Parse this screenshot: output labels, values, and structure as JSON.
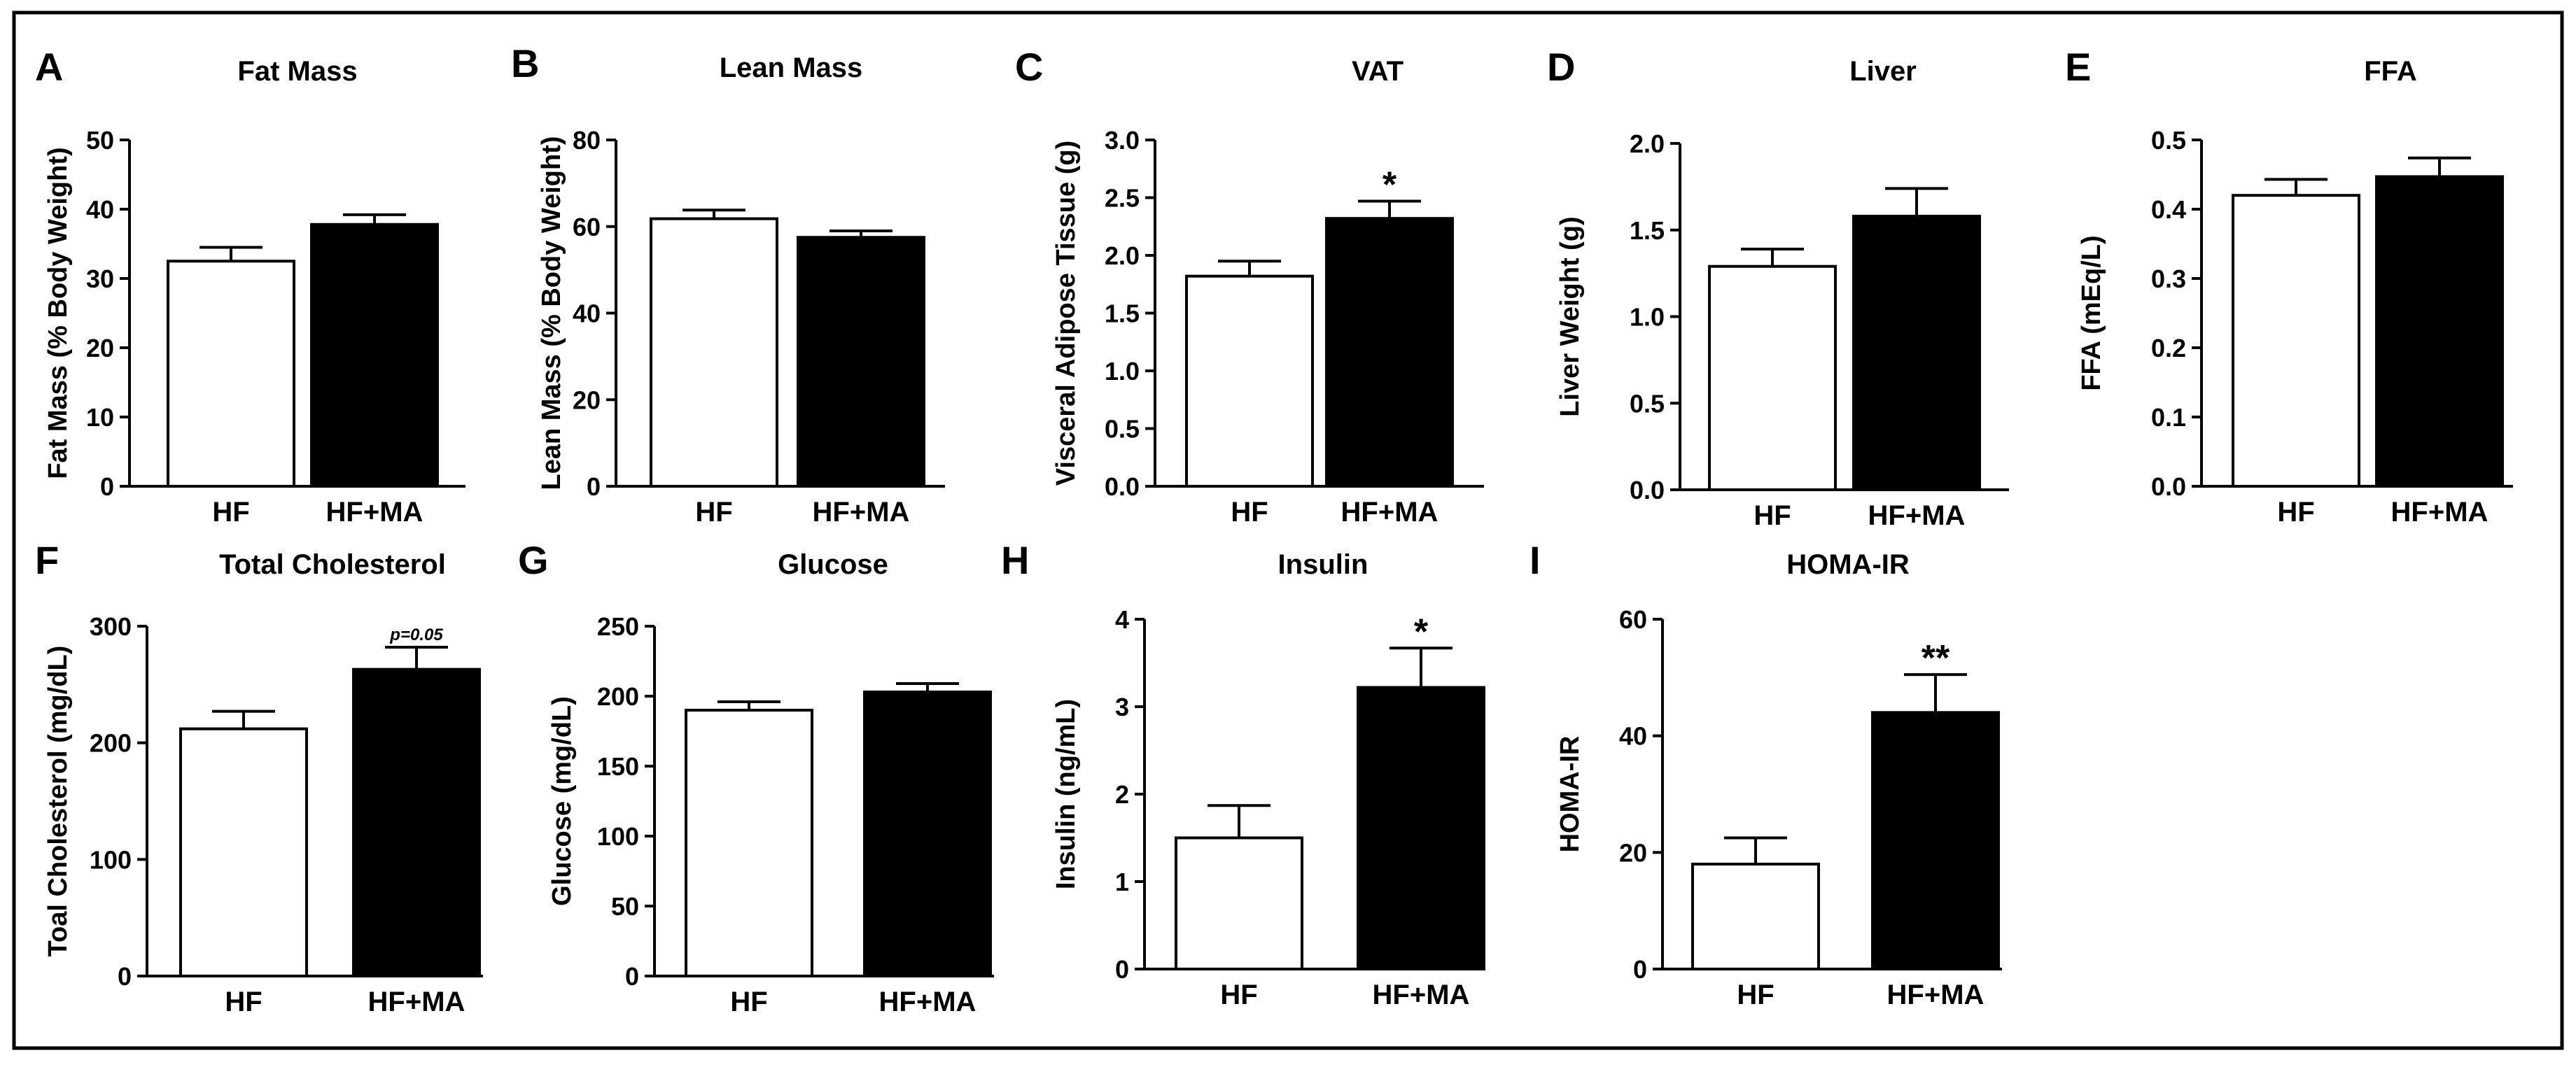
{
  "figure": {
    "border_color": "#000000"
  },
  "chart_data": [
    {
      "panel": "A",
      "type": "bar",
      "title": "Fat Mass",
      "ylabel": "Fat Mass (% Body  Weight)",
      "categories": [
        "HF",
        "HF+MA"
      ],
      "values": [
        32.5,
        37.8
      ],
      "errors": [
        2.0,
        1.4
      ],
      "colors": [
        "#ffffff",
        "#000000"
      ],
      "ylim": [
        0,
        50
      ],
      "yticks": [
        0,
        10,
        20,
        30,
        40,
        50
      ],
      "ytick_labels": [
        "0",
        "10",
        "20",
        "30",
        "40",
        "50"
      ],
      "annotations": [
        "",
        ""
      ]
    },
    {
      "panel": "B",
      "type": "bar",
      "title": "Lean Mass",
      "ylabel": "Lean Mass (% Body Weight)",
      "categories": [
        "HF",
        "HF+MA"
      ],
      "values": [
        61.8,
        57.5
      ],
      "errors": [
        2.0,
        1.5
      ],
      "colors": [
        "#ffffff",
        "#000000"
      ],
      "ylim": [
        0,
        80
      ],
      "yticks": [
        0,
        20,
        40,
        60,
        80
      ],
      "ytick_labels": [
        "0",
        "20",
        "40",
        "60",
        "80"
      ],
      "annotations": [
        "",
        ""
      ]
    },
    {
      "panel": "C",
      "type": "bar",
      "title": "VAT",
      "ylabel": "Visceral Adipose Tissue (g)",
      "categories": [
        "HF",
        "HF+MA"
      ],
      "values": [
        1.82,
        2.32
      ],
      "errors": [
        0.13,
        0.15
      ],
      "colors": [
        "#ffffff",
        "#000000"
      ],
      "ylim": [
        0,
        3.0
      ],
      "yticks": [
        0,
        0.5,
        1.0,
        1.5,
        2.0,
        2.5,
        3.0
      ],
      "ytick_labels": [
        "0.0",
        "0.5",
        "1.0",
        "1.5",
        "2.0",
        "2.5",
        "3.0"
      ],
      "annotations": [
        "",
        "*"
      ]
    },
    {
      "panel": "D",
      "type": "bar",
      "title": "Liver",
      "ylabel": "Liver Weight (g)",
      "categories": [
        "HF",
        "HF+MA"
      ],
      "values": [
        1.29,
        1.58
      ],
      "errors": [
        0.1,
        0.16
      ],
      "colors": [
        "#ffffff",
        "#000000"
      ],
      "ylim": [
        0,
        2.0
      ],
      "yticks": [
        0,
        0.5,
        1.0,
        1.5,
        2.0
      ],
      "ytick_labels": [
        "0.0",
        "0.5",
        "1.0",
        "1.5",
        "2.0"
      ],
      "annotations": [
        "",
        ""
      ]
    },
    {
      "panel": "E",
      "type": "bar",
      "title": "FFA",
      "ylabel": "FFA (mEq/L)",
      "categories": [
        "HF",
        "HF+MA"
      ],
      "values": [
        0.42,
        0.447
      ],
      "errors": [
        0.023,
        0.027
      ],
      "colors": [
        "#ffffff",
        "#000000"
      ],
      "ylim": [
        0,
        0.5
      ],
      "yticks": [
        0,
        0.1,
        0.2,
        0.3,
        0.4,
        0.5
      ],
      "ytick_labels": [
        "0.0",
        "0.1",
        "0.2",
        "0.3",
        "0.4",
        "0.5"
      ],
      "annotations": [
        "",
        ""
      ]
    },
    {
      "panel": "F",
      "type": "bar",
      "title": "Total Cholesterol",
      "ylabel": "Toal Cholesterol (mg/dL)",
      "categories": [
        "HF",
        "HF+MA"
      ],
      "values": [
        212,
        263
      ],
      "errors": [
        15,
        19
      ],
      "colors": [
        "#ffffff",
        "#000000"
      ],
      "ylim": [
        0,
        300
      ],
      "yticks": [
        0,
        100,
        200,
        300
      ],
      "ytick_labels": [
        "0",
        "100",
        "200",
        "300"
      ],
      "annotations": [
        "",
        ""
      ],
      "p_label": "p=0.05"
    },
    {
      "panel": "G",
      "type": "bar",
      "title": "Glucose",
      "ylabel": "Glucose (mg/dL)",
      "categories": [
        "HF",
        "HF+MA"
      ],
      "values": [
        190,
        203
      ],
      "errors": [
        6,
        6
      ],
      "colors": [
        "#ffffff",
        "#000000"
      ],
      "ylim": [
        0,
        250
      ],
      "yticks": [
        0,
        50,
        100,
        150,
        200,
        250
      ],
      "ytick_labels": [
        "0",
        "50",
        "100",
        "150",
        "200",
        "250"
      ],
      "annotations": [
        "",
        ""
      ]
    },
    {
      "panel": "H",
      "type": "bar",
      "title": "Insulin",
      "ylabel": "Insulin (ng/mL)",
      "categories": [
        "HF",
        "HF+MA"
      ],
      "values": [
        1.5,
        3.22
      ],
      "errors": [
        0.37,
        0.45
      ],
      "colors": [
        "#ffffff",
        "#000000"
      ],
      "ylim": [
        0,
        4
      ],
      "yticks": [
        0,
        1,
        2,
        3,
        4
      ],
      "ytick_labels": [
        "0",
        "1",
        "2",
        "3",
        "4"
      ],
      "annotations": [
        "",
        "*"
      ]
    },
    {
      "panel": "I",
      "type": "bar",
      "title": "HOMA-IR",
      "ylabel": "HOMA-IR",
      "categories": [
        "HF",
        "HF+MA"
      ],
      "values": [
        18,
        44
      ],
      "errors": [
        4.5,
        6.5
      ],
      "colors": [
        "#ffffff",
        "#000000"
      ],
      "ylim": [
        0,
        60
      ],
      "yticks": [
        0,
        20,
        40,
        60
      ],
      "ytick_labels": [
        "0",
        "20",
        "40",
        "60"
      ],
      "annotations": [
        "",
        "**"
      ]
    }
  ]
}
